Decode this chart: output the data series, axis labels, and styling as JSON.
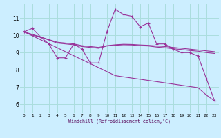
{
  "bg_color": "#cceeff",
  "grid_color": "#aadddd",
  "line_color": "#993399",
  "xlabel": "Windchill (Refroidissement éolien,°C)",
  "xlim": [
    -0.5,
    23.5
  ],
  "ylim": [
    5.5,
    11.8
  ],
  "xticks": [
    0,
    1,
    2,
    3,
    4,
    5,
    6,
    7,
    8,
    9,
    10,
    11,
    12,
    13,
    14,
    15,
    16,
    17,
    18,
    19,
    20,
    21,
    22,
    23
  ],
  "yticks": [
    6,
    7,
    8,
    9,
    10,
    11
  ],
  "series_main": [
    10.2,
    10.4,
    9.9,
    9.5,
    8.7,
    8.7,
    9.5,
    9.2,
    8.4,
    8.4,
    10.2,
    11.5,
    11.2,
    11.1,
    10.5,
    10.7,
    9.5,
    9.5,
    9.2,
    9.0,
    9.0,
    8.8,
    7.5,
    6.2
  ],
  "series_smooth1": [
    10.2,
    10.05,
    9.9,
    9.75,
    9.6,
    9.55,
    9.5,
    9.4,
    9.35,
    9.3,
    9.4,
    9.45,
    9.48,
    9.47,
    9.44,
    9.42,
    9.38,
    9.35,
    9.3,
    9.25,
    9.2,
    9.15,
    9.1,
    9.05
  ],
  "series_smooth2": [
    10.2,
    10.0,
    9.9,
    9.72,
    9.55,
    9.5,
    9.45,
    9.35,
    9.3,
    9.25,
    9.38,
    9.42,
    9.45,
    9.44,
    9.4,
    9.38,
    9.32,
    9.28,
    9.22,
    9.18,
    9.12,
    9.08,
    9.0,
    8.95
  ],
  "series_trend": [
    10.2,
    9.97,
    9.74,
    9.51,
    9.28,
    9.05,
    8.82,
    8.59,
    8.36,
    8.13,
    7.9,
    7.67,
    7.6,
    7.53,
    7.46,
    7.39,
    7.32,
    7.25,
    7.18,
    7.11,
    7.04,
    6.97,
    6.55,
    6.2
  ]
}
